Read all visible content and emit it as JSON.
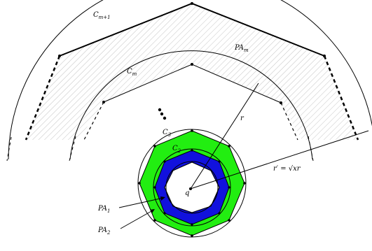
{
  "labels": {
    "c_m1": "C",
    "c_m1_sub": "m+1",
    "pa_m": "PA",
    "pa_m_sub": "m",
    "c_m": "C",
    "c_m_sub": "m",
    "r": "r",
    "c3": "C",
    "c3_sub": "3",
    "c2": "C",
    "c2_sub": "2",
    "q": "q",
    "r_prime": "r′ = √xr",
    "pa1": "PA",
    "pa1_sub": "1",
    "pa2": "PA",
    "pa2_sub": "2"
  },
  "colors": {
    "green": "#22ee11",
    "blue": "#1111dd",
    "hatch": "#aaaaaa",
    "stroke": "#000000"
  }
}
